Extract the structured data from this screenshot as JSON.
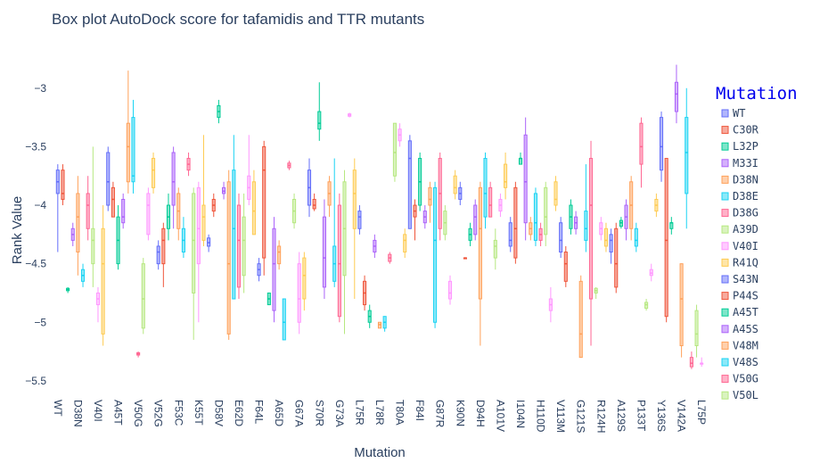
{
  "chart_data": {
    "type": "box",
    "title": "Box plot AutoDock score for tafamidis and TTR mutants",
    "y_label": "Rank Value",
    "x_label": "Mutation",
    "legend_title": "Mutation",
    "colors": [
      "#636efa",
      "#EF553B",
      "#00cc96",
      "#ab63fa",
      "#FFA15A",
      "#19d3f3",
      "#FF6692",
      "#B6E880",
      "#FF97FF",
      "#FECB52"
    ],
    "legend": [
      "WT",
      "C30R",
      "L32P",
      "M33I",
      "D38N",
      "D38E",
      "D38G",
      "A39D",
      "V40I",
      "R41Q",
      "S43N",
      "P44S",
      "A45T",
      "A45S",
      "V48M",
      "V48S",
      "V50G",
      "V50L"
    ],
    "ylim": [
      -5.6,
      -2.75
    ],
    "yticks": [
      {
        "value": -3,
        "label": "−3"
      },
      {
        "value": -3.5,
        "label": "−3.5"
      },
      {
        "value": -4,
        "label": "−4"
      },
      {
        "value": -4.5,
        "label": "−4.5"
      },
      {
        "value": -5,
        "label": "−5"
      },
      {
        "value": -5.5,
        "label": "−5.5"
      }
    ],
    "grid": false,
    "categories": [
      "WT",
      null,
      null,
      null,
      "D38N",
      null,
      null,
      null,
      "V40I",
      null,
      null,
      null,
      "A45T",
      null,
      null,
      null,
      "V50G",
      null,
      null,
      null,
      "V52G",
      null,
      null,
      null,
      "F53C",
      null,
      null,
      null,
      "K55T",
      null,
      null,
      null,
      "D58V",
      null,
      null,
      null,
      "E62D",
      null,
      null,
      null,
      "F64L",
      null,
      null,
      null,
      "A65D",
      null,
      null,
      null,
      "G67A",
      null,
      null,
      null,
      "S70R",
      null,
      null,
      null,
      "G73A",
      null,
      null,
      null,
      "L75R",
      null,
      null,
      null,
      "L78R",
      null,
      null,
      null,
      "T80A",
      null,
      null,
      null,
      "F84I",
      null,
      null,
      null,
      "G87R",
      null,
      null,
      null,
      "K90N",
      null,
      null,
      null,
      "D94H",
      null,
      null,
      null,
      "A101V",
      null,
      null,
      null,
      "I104N",
      null,
      null,
      null,
      "H110D",
      null,
      null,
      null,
      "V113M",
      null,
      null,
      null,
      "G121S",
      null,
      null,
      null,
      "R124H",
      null,
      null,
      null,
      "A129S",
      null,
      null,
      null,
      "P133T",
      null,
      null,
      null,
      "Y136S",
      null,
      null,
      null,
      "V142A",
      null,
      null,
      null,
      "L75P"
    ],
    "boxes": [
      [
        -4.4,
        -3.9,
        -3.8,
        -3.7,
        -3.65
      ],
      [
        -4.0,
        -3.95,
        -3.9,
        -3.7,
        -3.65
      ],
      [
        -4.75,
        -4.73,
        -4.72,
        -4.71,
        -4.7
      ],
      [
        -4.35,
        -4.3,
        -4.25,
        -4.2,
        -4.15
      ],
      [
        -4.6,
        -4.4,
        -4.1,
        -3.9,
        -3.75
      ],
      [
        -4.7,
        -4.65,
        -4.6,
        -4.55,
        -4.5
      ],
      [
        -4.3,
        -4.2,
        -4.0,
        -3.9,
        -3.75
      ],
      [
        -4.7,
        -4.5,
        -4.3,
        -4.2,
        -3.5
      ],
      [
        -5.0,
        -4.85,
        -4.8,
        -4.75,
        -4.7
      ],
      [
        -5.2,
        -5.1,
        -4.5,
        -4.2,
        -4.0
      ],
      [
        -4.05,
        -4.0,
        -3.8,
        -3.55,
        -3.5
      ],
      [
        -4.1,
        -4.1,
        -3.95,
        -3.85,
        -3.8
      ],
      [
        -4.55,
        -4.5,
        -4.3,
        -4.1,
        -4.0
      ],
      [
        -4.2,
        -4.15,
        -4.1,
        -3.95,
        -3.9
      ],
      [
        -3.9,
        -3.8,
        -3.5,
        -3.3,
        -2.85
      ],
      [
        -3.9,
        -3.8,
        -3.75,
        -3.25,
        -3.1
      ],
      [
        -5.3,
        -5.28,
        -5.27,
        -5.26,
        -5.25
      ],
      [
        -5.1,
        -5.05,
        -4.8,
        -4.5,
        -4.45
      ],
      [
        -4.3,
        -4.25,
        -4.0,
        -3.9,
        -3.85
      ],
      [
        -3.9,
        -3.85,
        -3.7,
        -3.6,
        -3.55
      ],
      [
        -4.55,
        -4.5,
        -4.4,
        -4.35,
        -4.3
      ],
      [
        -4.7,
        -4.5,
        -4.3,
        -4.2,
        -4.15
      ],
      [
        -4.3,
        -4.2,
        -4.1,
        -4.0,
        -3.9
      ],
      [
        -4.2,
        -4.0,
        -3.8,
        -3.55,
        -3.5
      ],
      [
        -4.3,
        -4.2,
        -4.05,
        -3.9,
        -3.85
      ],
      [
        -4.45,
        -4.4,
        -4.3,
        -4.2,
        -4.1
      ],
      [
        -3.75,
        -3.7,
        -3.65,
        -3.6,
        -3.55
      ],
      [
        -5.15,
        -4.75,
        -4.3,
        -3.9,
        -3.85
      ],
      [
        -5.0,
        -4.5,
        -4.2,
        -3.85,
        -3.8
      ],
      [
        -4.35,
        -4.3,
        -4.1,
        -4.0,
        -3.4
      ],
      [
        -4.4,
        -4.35,
        -4.32,
        -4.28,
        -4.25
      ],
      [
        -4.1,
        -4.05,
        -4.0,
        -3.95,
        -3.9
      ],
      [
        -3.3,
        -3.25,
        -3.2,
        -3.15,
        -3.1
      ],
      [
        -3.95,
        -3.9,
        -3.88,
        -3.85,
        -3.8
      ],
      [
        -5.15,
        -5.1,
        -4.5,
        -3.8,
        -3.7
      ],
      [
        -4.8,
        -4.8,
        -4.2,
        -3.7,
        -3.4
      ],
      [
        -4.8,
        -4.7,
        -4.3,
        -4.0,
        -3.9
      ],
      [
        -4.75,
        -4.6,
        -4.3,
        -4.1,
        -3.9
      ],
      [
        -4.0,
        -3.95,
        -3.85,
        -3.75,
        -3.4
      ],
      [
        -4.25,
        -4.25,
        -4.05,
        -3.8,
        -3.7
      ],
      [
        -4.65,
        -4.6,
        -4.55,
        -4.5,
        -4.45
      ],
      [
        -4.6,
        -4.45,
        -3.7,
        -3.5,
        -3.45
      ],
      [
        -4.85,
        -4.85,
        -4.8,
        -4.75,
        -4.75
      ],
      [
        -5.0,
        -4.9,
        -4.5,
        -4.2,
        -4.1
      ],
      [
        -4.55,
        -4.5,
        -4.4,
        -4.35,
        -4.3
      ],
      [
        -5.15,
        -5.15,
        -5.0,
        -4.8,
        -4.8
      ],
      [
        -3.7,
        -3.68,
        -3.66,
        -3.64,
        -3.62
      ],
      [
        -4.2,
        -4.15,
        -4.05,
        -3.95,
        -3.9
      ],
      [
        -5.1,
        -5.0,
        -4.8,
        -4.5,
        -4.4
      ],
      [
        -4.9,
        -4.8,
        -4.6,
        -4.45,
        -4.4
      ],
      [
        -4.1,
        -4.0,
        -3.85,
        -3.7,
        -3.6
      ],
      [
        -4.05,
        -4.03,
        -4.0,
        -3.95,
        -3.9
      ],
      [
        -3.45,
        -3.35,
        -3.3,
        -3.2,
        -2.95
      ],
      [
        -4.8,
        -4.7,
        -4.45,
        -4.1,
        -3.95
      ],
      [
        -4.1,
        -4.0,
        -3.9,
        -3.8,
        -3.75
      ],
      [
        -4.7,
        -4.65,
        -4.5,
        -4.35,
        -3.6
      ],
      [
        -5.0,
        -4.95,
        -4.5,
        -4.0,
        -3.9
      ],
      [
        -5.1,
        -4.6,
        -4.2,
        -3.8,
        -3.7
      ],
      [
        -3.25,
        -3.24,
        -3.23,
        -3.22,
        -3.21
      ],
      [
        -4.8,
        -4.2,
        -3.9,
        -3.7,
        -3.6
      ],
      [
        -4.25,
        -4.2,
        -4.1,
        -4.05,
        -4.0
      ],
      [
        -4.9,
        -4.85,
        -4.75,
        -4.65,
        -4.6
      ],
      [
        -5.05,
        -5.0,
        -4.95,
        -4.9,
        -4.85
      ],
      [
        -4.45,
        -4.4,
        -4.35,
        -4.3,
        -4.25
      ],
      [
        -5.05,
        -5.05,
        -5.02,
        -5.0,
        -5.0
      ],
      [
        -5.08,
        -5.05,
        -5.0,
        -4.95,
        -4.95
      ],
      [
        -4.5,
        -4.48,
        -4.45,
        -4.42,
        -4.4
      ],
      [
        -3.8,
        -3.75,
        -3.55,
        -3.3,
        -3.3
      ],
      [
        -3.5,
        -3.45,
        -3.4,
        -3.35,
        -3.3
      ],
      [
        -4.45,
        -4.4,
        -4.3,
        -4.25,
        -4.2
      ],
      [
        -4.2,
        -4.2,
        -3.6,
        -3.45,
        -3.4
      ],
      [
        -4.3,
        -4.1,
        -4.05,
        -4.0,
        -3.95
      ],
      [
        -4.05,
        -4.0,
        -3.8,
        -3.6,
        -3.55
      ],
      [
        -4.2,
        -4.15,
        -4.1,
        -4.05,
        -4.0
      ],
      [
        -4.15,
        -4.0,
        -3.95,
        -3.85,
        -3.8
      ],
      [
        -5.05,
        -5.0,
        -4.3,
        -3.85,
        -3.8
      ],
      [
        -4.3,
        -4.2,
        -3.9,
        -3.6,
        -3.55
      ],
      [
        -4.3,
        -4.25,
        -4.15,
        -4.05,
        -4.0
      ],
      [
        -4.85,
        -4.8,
        -4.75,
        -4.65,
        -4.6
      ],
      [
        -3.95,
        -3.9,
        -3.85,
        -3.75,
        -3.7
      ],
      [
        -4.0,
        -3.95,
        -3.9,
        -3.85,
        -3.8
      ],
      [
        -4.45,
        -4.45,
        -4.45,
        -4.45,
        -4.45
      ],
      [
        -4.35,
        -4.3,
        -4.25,
        -4.2,
        -4.15
      ],
      [
        -4.3,
        -4.25,
        -4.1,
        -4.0,
        -3.95
      ],
      [
        -5.2,
        -4.8,
        -4.2,
        -3.85,
        -3.8
      ],
      [
        -4.2,
        -4.1,
        -3.9,
        -3.6,
        -3.55
      ],
      [
        -4.1,
        -4.1,
        -4.0,
        -3.85,
        -3.8
      ],
      [
        -4.55,
        -4.45,
        -4.35,
        -4.3,
        -4.2
      ],
      [
        -4.1,
        -4.05,
        -4.0,
        -3.95,
        -3.9
      ],
      [
        -3.95,
        -3.85,
        -3.8,
        -3.65,
        -3.55
      ],
      [
        -4.4,
        -4.35,
        -4.3,
        -4.15,
        -4.1
      ],
      [
        -4.5,
        -4.45,
        -4.2,
        -3.85,
        -3.8
      ],
      [
        -3.65,
        -3.65,
        -3.6,
        -3.6,
        -3.55
      ],
      [
        -4.3,
        -4.15,
        -3.8,
        -3.4,
        -3.25
      ],
      [
        -4.3,
        -4.25,
        -4.2,
        -4.15,
        -4.1
      ],
      [
        -4.35,
        -4.3,
        -4.15,
        -3.9,
        -3.85
      ],
      [
        -4.35,
        -4.3,
        -4.25,
        -4.2,
        -4.15
      ],
      [
        -4.35,
        -4.25,
        -4.1,
        -3.85,
        -3.8
      ],
      [
        -5.0,
        -4.9,
        -4.85,
        -4.8,
        -4.7
      ],
      [
        -4.05,
        -4.0,
        -3.95,
        -3.8,
        -3.75
      ],
      [
        -4.45,
        -4.4,
        -4.3,
        -4.15,
        -4.1
      ],
      [
        -4.7,
        -4.65,
        -4.5,
        -4.4,
        -4.35
      ],
      [
        -4.25,
        -4.2,
        -4.1,
        -4.0,
        -3.95
      ],
      [
        -4.25,
        -4.2,
        -4.15,
        -4.1,
        -4.05
      ],
      [
        -5.3,
        -5.3,
        -5.1,
        -4.65,
        -4.6
      ],
      [
        -4.4,
        -4.3,
        -4.2,
        -4.05,
        -3.65
      ],
      [
        -5.2,
        -4.8,
        -4.0,
        -3.6,
        -3.45
      ],
      [
        -4.8,
        -4.75,
        -4.73,
        -4.71,
        -4.7
      ],
      [
        -4.3,
        -4.25,
        -4.2,
        -4.15,
        -4.1
      ],
      [
        -4.4,
        -4.35,
        -4.3,
        -4.2,
        -4.15
      ],
      [
        -4.5,
        -4.4,
        -4.3,
        -4.25,
        -4.2
      ],
      [
        -4.75,
        -4.7,
        -4.5,
        -4.2,
        -4.15
      ],
      [
        -4.2,
        -4.18,
        -4.15,
        -4.13,
        -4.1
      ],
      [
        -4.3,
        -4.2,
        -4.1,
        -4.0,
        -3.95
      ],
      [
        -4.3,
        -4.2,
        -4.0,
        -3.8,
        -3.75
      ],
      [
        -4.4,
        -4.35,
        -4.3,
        -4.2,
        -4.15
      ],
      [
        -3.85,
        -3.65,
        -3.5,
        -3.3,
        -3.25
      ],
      [
        -4.9,
        -4.88,
        -4.85,
        -4.83,
        -4.8
      ],
      [
        -4.65,
        -4.6,
        -4.58,
        -4.55,
        -4.5
      ],
      [
        -4.1,
        -4.05,
        -4.0,
        -3.95,
        -3.9
      ],
      [
        -3.8,
        -3.7,
        -3.5,
        -3.25,
        -3.2
      ],
      [
        -5.0,
        -4.95,
        -4.3,
        -3.6,
        -3.6
      ],
      [
        -4.25,
        -4.2,
        -4.15,
        -4.15,
        -4.1
      ],
      [
        -3.3,
        -3.2,
        -3.05,
        -2.95,
        -2.8
      ],
      [
        -5.3,
        -5.2,
        -4.8,
        -4.5,
        -4.5
      ],
      [
        -4.2,
        -3.9,
        -3.55,
        -3.25,
        -3.0
      ],
      [
        -5.4,
        -5.38,
        -5.35,
        -5.3,
        -5.25
      ],
      [
        -5.3,
        -5.2,
        -5.1,
        -4.9,
        -4.85
      ],
      [
        -5.38,
        -5.35,
        -5.35,
        -5.35,
        -5.3
      ]
    ]
  }
}
